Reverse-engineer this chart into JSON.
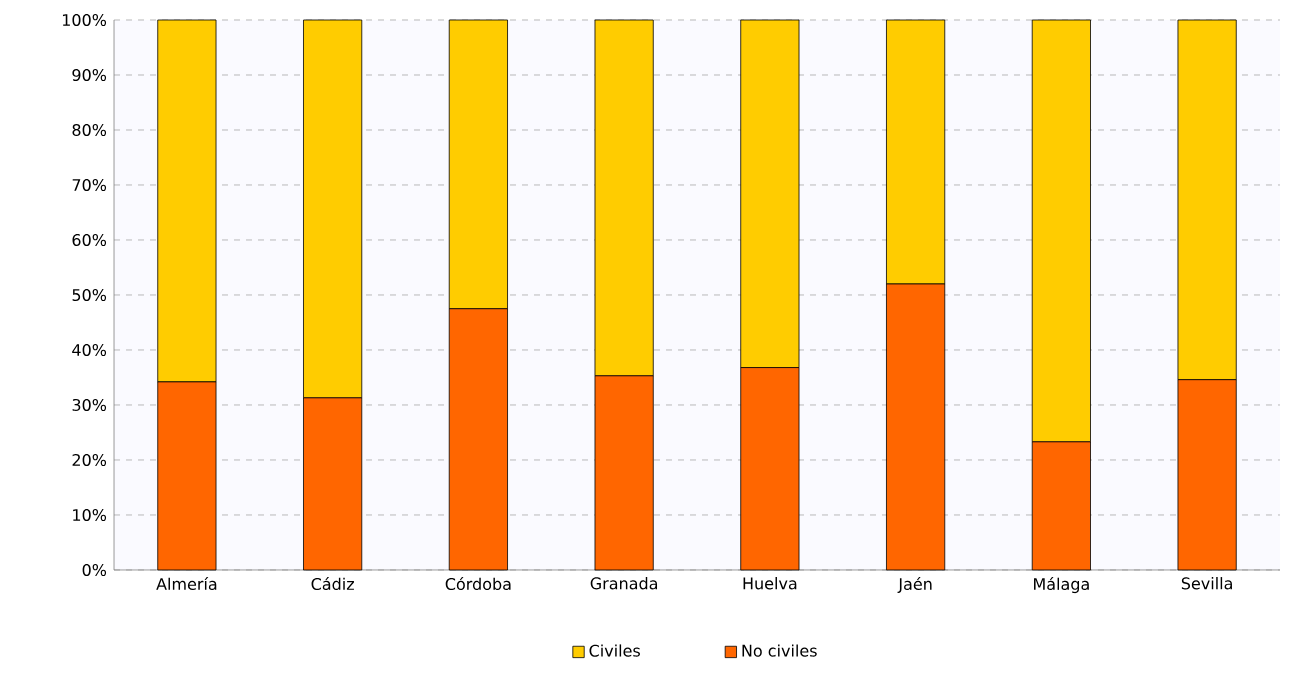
{
  "chart_data": {
    "type": "bar",
    "stacked": true,
    "categories": [
      "Almería",
      "Cádiz",
      "Córdoba",
      "Granada",
      "Huelva",
      "Jaén",
      "Málaga",
      "Sevilla"
    ],
    "series": [
      {
        "name": "No civiles",
        "color": "#ff6600",
        "values": [
          34.2,
          31.3,
          47.5,
          35.3,
          36.8,
          52,
          23.3,
          34.6
        ]
      },
      {
        "name": "Civiles",
        "color": "#ffcc00",
        "values": [
          65.8,
          68.7,
          52.5,
          64.7,
          63.2,
          48,
          76.7,
          65.4
        ]
      }
    ],
    "ylim": [
      0,
      100
    ],
    "yticks": [
      {
        "value": 0,
        "label": "0%"
      },
      {
        "value": 10,
        "label": "10%"
      },
      {
        "value": 20,
        "label": "20%"
      },
      {
        "value": 30,
        "label": "30%"
      },
      {
        "value": 40,
        "label": "40%"
      },
      {
        "value": 50,
        "label": "50%"
      },
      {
        "value": 60,
        "label": "60%"
      },
      {
        "value": 70,
        "label": "70%"
      },
      {
        "value": 80,
        "label": "80%"
      },
      {
        "value": 90,
        "label": "90%"
      },
      {
        "value": 100,
        "label": "100%"
      }
    ],
    "grid": "y",
    "legend": "bottom"
  }
}
